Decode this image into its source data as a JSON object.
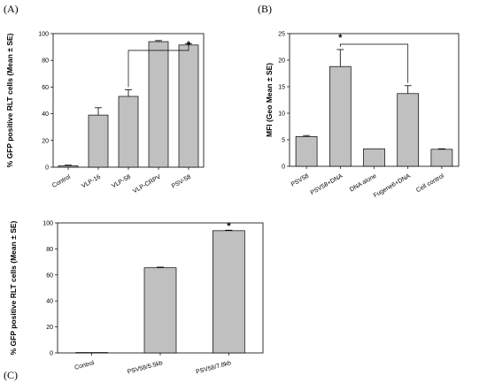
{
  "chart_data": [
    {
      "panel": "(A)",
      "type": "bar",
      "categories": [
        "Control",
        "VLP-16",
        "VLP-58",
        "VLP-CRPV",
        "PSV-58"
      ],
      "values": [
        1,
        39,
        53,
        94,
        91.5
      ],
      "errors": [
        0.5,
        5.5,
        5,
        0.8,
        0.8
      ],
      "ylabel": "% GFP positive RLT cells (Mean ± SE)",
      "ylim": [
        0,
        100
      ],
      "yticks": [
        "0",
        "20",
        "40",
        "60",
        "80",
        "100"
      ],
      "significance": {
        "label": "*",
        "from": "VLP-58",
        "to": "PSV-58"
      }
    },
    {
      "panel": "(B)",
      "type": "bar",
      "categories": [
        "PSV58",
        "PSV58+DNA",
        "DNA alone",
        "Fugene6+DNA",
        "Cell control"
      ],
      "values": [
        5.6,
        18.8,
        3.3,
        13.7,
        3.2
      ],
      "errors": [
        0.2,
        3.2,
        0,
        1.5,
        0.1
      ],
      "ylabel": "MFI (Geo Mean ± SE)",
      "ylim": [
        0,
        25
      ],
      "yticks": [
        "0",
        "5",
        "10",
        "15",
        "20",
        "25"
      ],
      "significance": {
        "label": "*",
        "from": "PSV58+DNA",
        "to": "Fugene6+DNA"
      }
    },
    {
      "panel": "(C)",
      "type": "bar",
      "categories": [
        "Control",
        "PSV58/5.5kb",
        "PSV58/7.8kb"
      ],
      "values": [
        0.3,
        65.5,
        94
      ],
      "errors": [
        0,
        0.5,
        0.4
      ],
      "ylabel": "% GFP positive RLT cells (Mean ± SE)",
      "ylim": [
        0,
        100
      ],
      "yticks": [
        "0",
        "20",
        "40",
        "60",
        "80",
        "100"
      ],
      "significance": {
        "label": "*",
        "from": "PSV58/7.8kb",
        "to": "PSV58/7.8kb"
      }
    }
  ]
}
